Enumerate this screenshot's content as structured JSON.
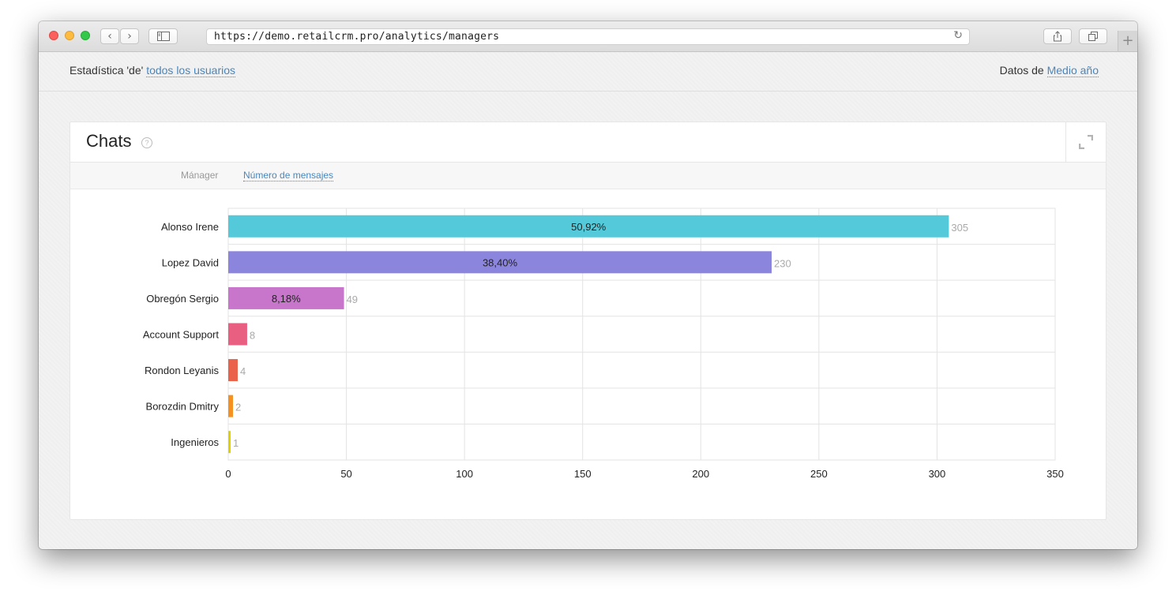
{
  "browser": {
    "url": "https://demo.retailcrm.pro/analytics/managers",
    "back_label": "‹",
    "forward_label": "›",
    "reload_label": "↻",
    "new_tab_label": "+"
  },
  "filters": {
    "stat_prefix": "Estadística 'de'",
    "stat_link": "todos los usuarios",
    "data_prefix": "Datos de",
    "data_link": "Medio año"
  },
  "card": {
    "title": "Chats",
    "help_label": "?",
    "columns": {
      "manager": "Mánager",
      "messages": "Número de mensajes"
    }
  },
  "chart_data": {
    "type": "bar",
    "orientation": "horizontal",
    "categories": [
      "Alonso Irene",
      "Lopez David",
      "Obregón Sergio",
      "Account Support",
      "Rondon Leyanis",
      "Borozdin Dmitry",
      "Ingenieros"
    ],
    "values": [
      305,
      230,
      49,
      8,
      4,
      2,
      1
    ],
    "percent_labels": [
      "50,92%",
      "38,40%",
      "8,18%",
      "",
      "",
      "",
      ""
    ],
    "colors": [
      "#54c9d9",
      "#8c85de",
      "#c876cc",
      "#e95f82",
      "#ea6249",
      "#f59120",
      "#e0d100"
    ],
    "xlim": [
      0,
      350
    ],
    "xticks": [
      0,
      50,
      100,
      150,
      200,
      250,
      300,
      350
    ],
    "grid": true
  }
}
